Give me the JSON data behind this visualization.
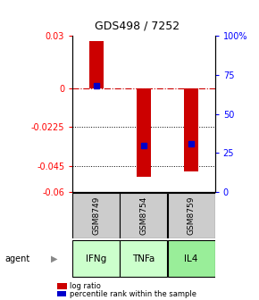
{
  "title": "GDS498 / 7252",
  "samples": [
    "GSM8749",
    "GSM8754",
    "GSM8759"
  ],
  "agents": [
    "IFNg",
    "TNFa",
    "IL4"
  ],
  "log_ratios": [
    0.027,
    -0.051,
    -0.048
  ],
  "percentile_ranks": [
    68,
    30,
    31
  ],
  "bar_color": "#cc0000",
  "dot_color": "#0000cc",
  "ylim_left": [
    -0.06,
    0.03
  ],
  "ylim_right": [
    0,
    100
  ],
  "yticks_left": [
    0.03,
    0,
    -0.0225,
    -0.045,
    -0.06
  ],
  "ytick_labels_left": [
    "0.03",
    "0",
    "-0.0225",
    "-0.045",
    "-0.06"
  ],
  "yticks_right": [
    100,
    75,
    50,
    25,
    0
  ],
  "ytick_labels_right": [
    "100%",
    "75",
    "50",
    "25",
    "0"
  ],
  "sample_box_color": "#cccccc",
  "agent_box_colors": [
    "#ccffcc",
    "#ccffcc",
    "#99ee99"
  ],
  "zero_line_color": "#cc0000",
  "legend_red_label": "log ratio",
  "legend_blue_label": "percentile rank within the sample",
  "bar_width": 0.3
}
